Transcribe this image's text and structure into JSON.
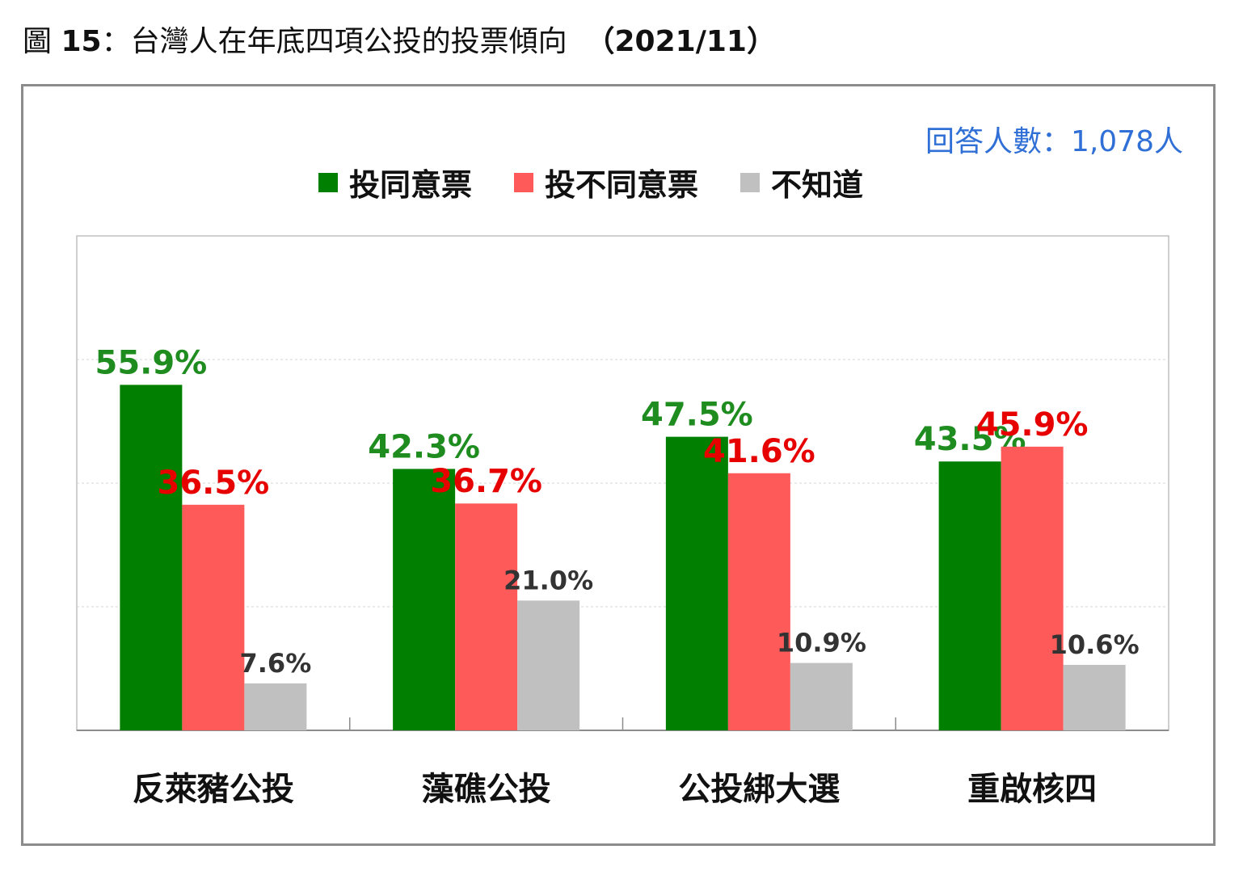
{
  "figure": {
    "title_prefix": "圖",
    "title_number": "15",
    "title_sep": "：",
    "title_text": "台灣人在年底四項公投的投票傾向",
    "title_date": "（2021/11）"
  },
  "sample_note": "回答人數：1,078人",
  "colors": {
    "agree": "#007F00",
    "disagree": "#FF5A5A",
    "unknown": "#C0C0C0",
    "agree_label": "#1E8C1E",
    "disagree_label": "#E60000",
    "unknown_label": "#333333"
  },
  "chart_data": {
    "type": "bar",
    "title": "台灣人在年底四項公投的投票傾向",
    "categories": [
      "反萊豬公投",
      "藻礁公投",
      "公投綁大選",
      "重啟核四"
    ],
    "series": [
      {
        "name": "投同意票",
        "values": [
          55.9,
          42.3,
          47.5,
          43.5
        ],
        "labels": [
          "55.9%",
          "42.3%",
          "47.5%",
          "43.5%"
        ]
      },
      {
        "name": "投不同意票",
        "values": [
          36.5,
          36.7,
          41.6,
          45.9
        ],
        "labels": [
          "36.5%",
          "36.7%",
          "41.6%",
          "45.9%"
        ]
      },
      {
        "name": "不知道",
        "values": [
          7.6,
          21.0,
          10.9,
          10.6
        ],
        "labels": [
          "7.6%",
          "21.0%",
          "10.9%",
          "10.6%"
        ]
      }
    ],
    "ylim": [
      0,
      80
    ],
    "gridlines": [
      20,
      40,
      60
    ],
    "legend_position": "top-center",
    "grid": true
  }
}
